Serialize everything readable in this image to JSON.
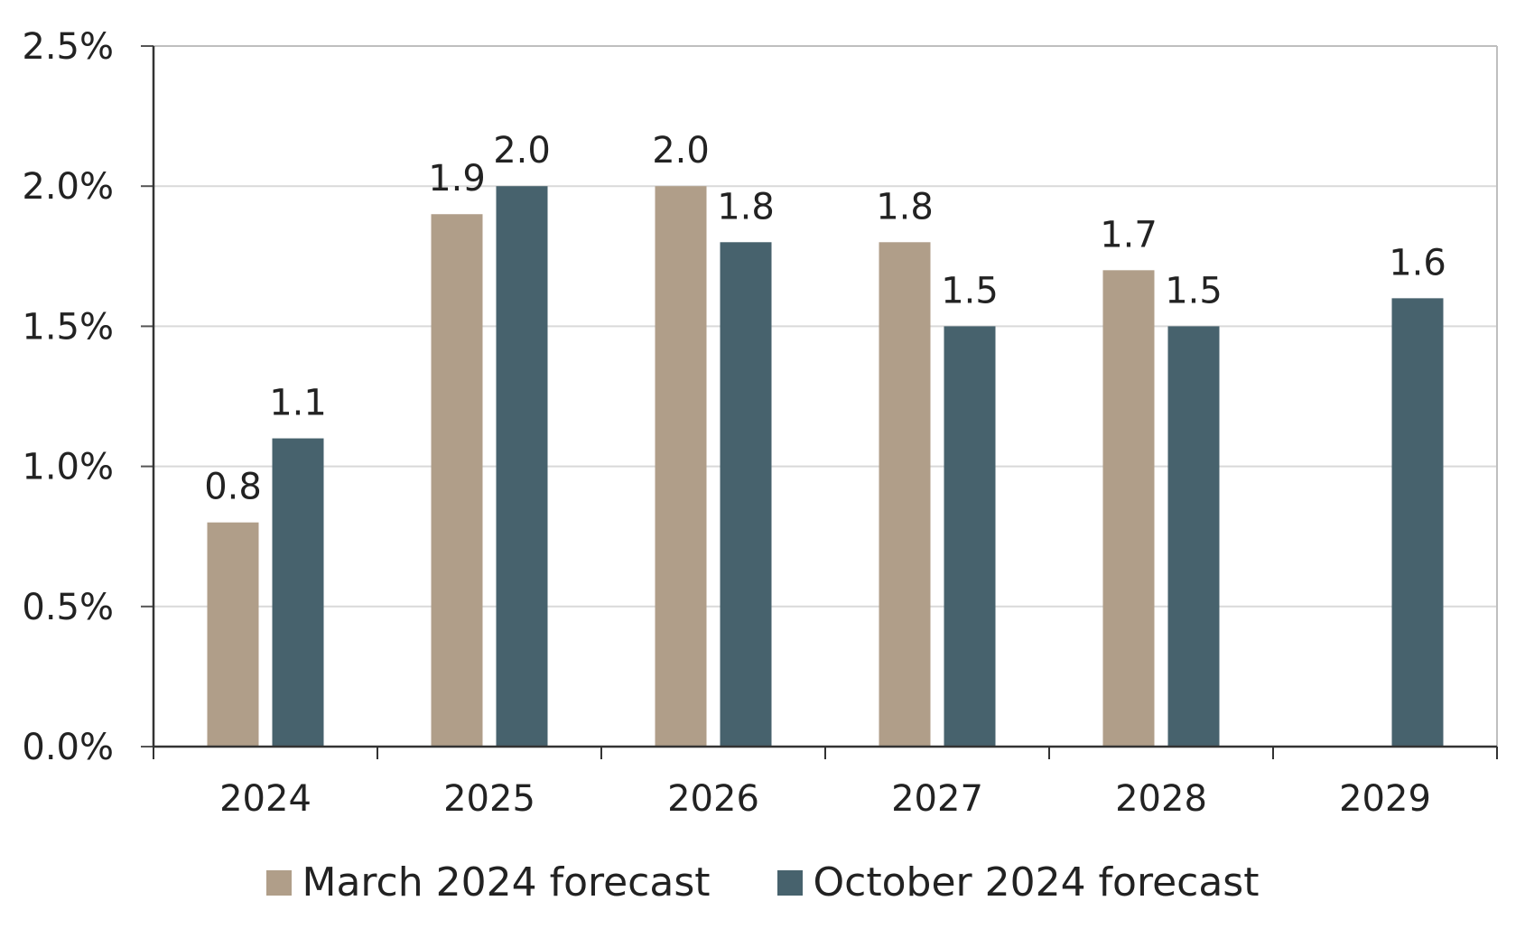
{
  "chart_data": {
    "type": "bar",
    "title": "",
    "xlabel": "",
    "ylabel": "",
    "categories": [
      "2024",
      "2025",
      "2026",
      "2027",
      "2028",
      "2029"
    ],
    "series": [
      {
        "name": "March 2024 forecast",
        "color": "#B09E89",
        "values": [
          0.8,
          1.9,
          2.0,
          1.8,
          1.7,
          null
        ],
        "labels": [
          "0.8",
          "1.9",
          "2.0",
          "1.8",
          "1.7",
          ""
        ]
      },
      {
        "name": "October 2024 forecast",
        "color": "#47626D",
        "values": [
          1.1,
          2.0,
          1.8,
          1.5,
          1.5,
          1.6
        ],
        "labels": [
          "1.1",
          "2.0",
          "1.8",
          "1.5",
          "1.5",
          "1.6"
        ]
      }
    ],
    "ylim": [
      0,
      2.5
    ],
    "yticks": [
      0,
      0.5,
      1.0,
      1.5,
      2.0,
      2.5
    ],
    "ytick_labels": [
      "0.0%",
      "0.5%",
      "1.0%",
      "1.5%",
      "2.0%",
      "2.5%"
    ],
    "grid": true,
    "legend_position": "bottom-center"
  }
}
